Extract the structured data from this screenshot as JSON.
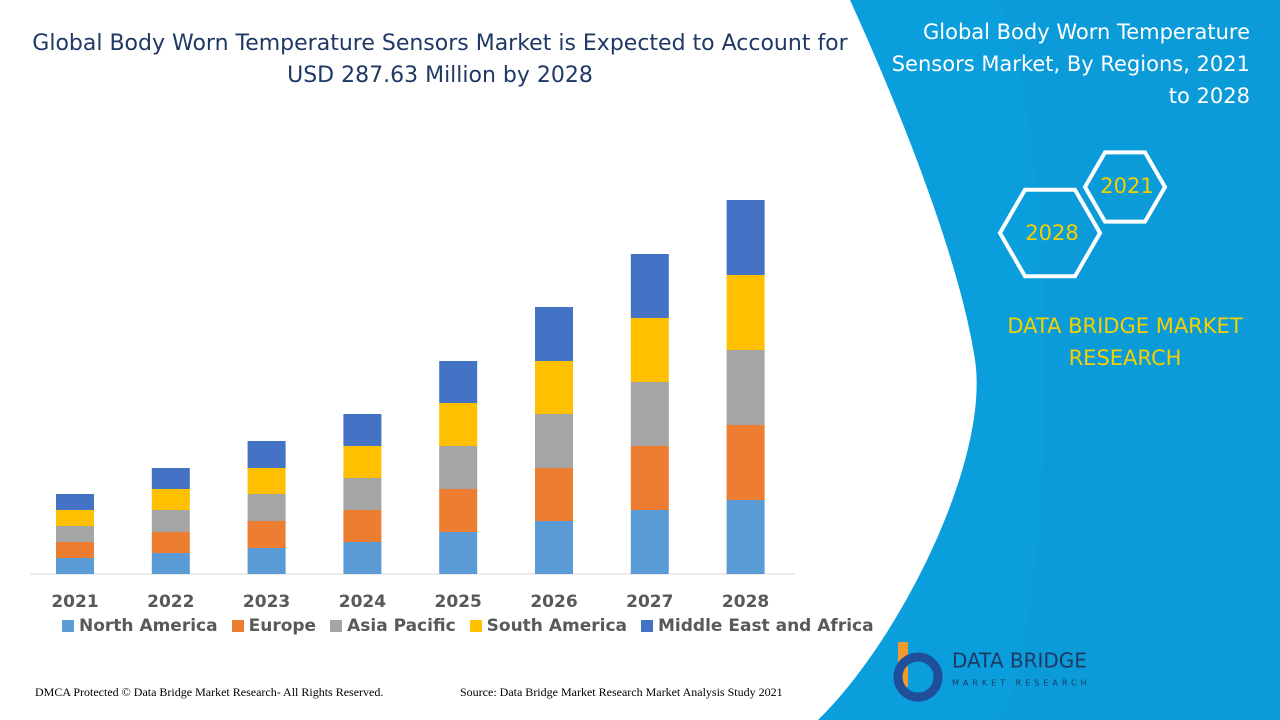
{
  "chart_data": {
    "type": "bar",
    "stacked": true,
    "title": "Global Body Worn Temperature Sensors Market is Expected to Account for USD 287.63 Million by 2028",
    "categories": [
      "2021",
      "2022",
      "2023",
      "2024",
      "2025",
      "2026",
      "2027",
      "2028"
    ],
    "series": [
      {
        "name": "North America",
        "color": "#5b9bd5",
        "values": [
          16,
          21,
          26,
          32,
          42,
          53,
          64,
          74
        ]
      },
      {
        "name": "Europe",
        "color": "#ed7d31",
        "values": [
          16,
          21,
          27,
          32,
          43,
          53,
          64,
          75
        ]
      },
      {
        "name": "Asia Pacific",
        "color": "#a5a5a5",
        "values": [
          16,
          22,
          27,
          32,
          43,
          54,
          64,
          75
        ]
      },
      {
        "name": "South America",
        "color": "#ffc000",
        "values": [
          16,
          21,
          26,
          32,
          43,
          53,
          64,
          75
        ]
      },
      {
        "name": "Middle East and Africa",
        "color": "#4472c4",
        "values": [
          16,
          21,
          27,
          32,
          42,
          54,
          64,
          75
        ]
      }
    ]
  },
  "panel": {
    "title": "Global Body Worn Temperature Sensors Market, By Regions, 2021 to 2028",
    "hex_labels": [
      "2021",
      "2028"
    ],
    "brand": "DATA BRIDGE MARKET RESEARCH"
  },
  "logo": {
    "name": "DATA BRIDGE",
    "tagline": "MARKET RESEARCH"
  },
  "footer": {
    "copyright": "DMCA Protected © Data Bridge Market Research- All Rights Reserved.",
    "source": "Source: Data Bridge Market Research Market Analysis Study 2021"
  }
}
